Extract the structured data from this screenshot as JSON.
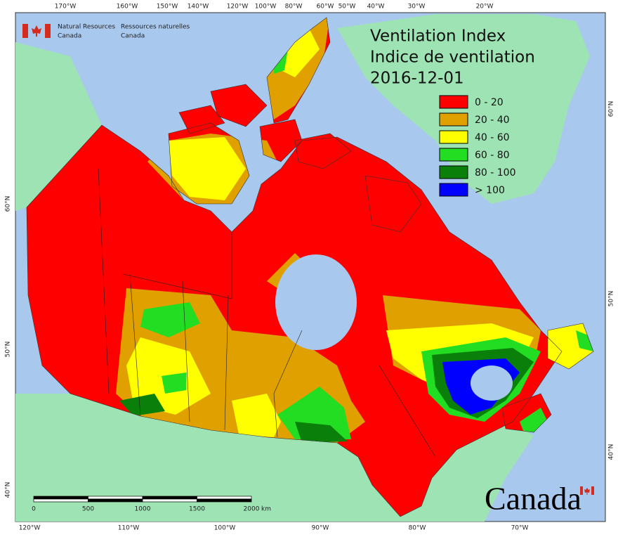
{
  "header": {
    "agency_en": [
      "Natural Resources",
      "Canada"
    ],
    "agency_fr": [
      "Ressources naturelles",
      "Canada"
    ]
  },
  "title": [
    "Ventilation Index",
    "Indice de ventilation",
    "2016-12-01"
  ],
  "legend": [
    {
      "label": "0 - 20",
      "color": "#ff0000"
    },
    {
      "label": "20 - 40",
      "color": "#dfa000"
    },
    {
      "label": "40 - 60",
      "color": "#ffff00"
    },
    {
      "label": "60 - 80",
      "color": "#22dd22"
    },
    {
      "label": "80 - 100",
      "color": "#0a7f0a"
    },
    {
      "label": "> 100",
      "color": "#0000ff"
    }
  ],
  "top_labels": [
    "170°W",
    "160°W",
    "150°W",
    "140°W",
    "120°W",
    "100°W",
    "80°W",
    "60°W",
    "50°W",
    "40°W",
    "30°W",
    "20°W"
  ],
  "bottom_labels": [
    "120°W",
    "110°W",
    "100°W",
    "90°W",
    "80°W",
    "70°W"
  ],
  "left_labels": [
    "60°N",
    "50°N",
    "40°N"
  ],
  "right_labels": [
    "60°N",
    "50°N",
    "40°N"
  ],
  "scale": {
    "ticks": [
      0,
      500,
      1000,
      1500,
      2000
    ],
    "unit": "km"
  },
  "wordmark": "Canada"
}
